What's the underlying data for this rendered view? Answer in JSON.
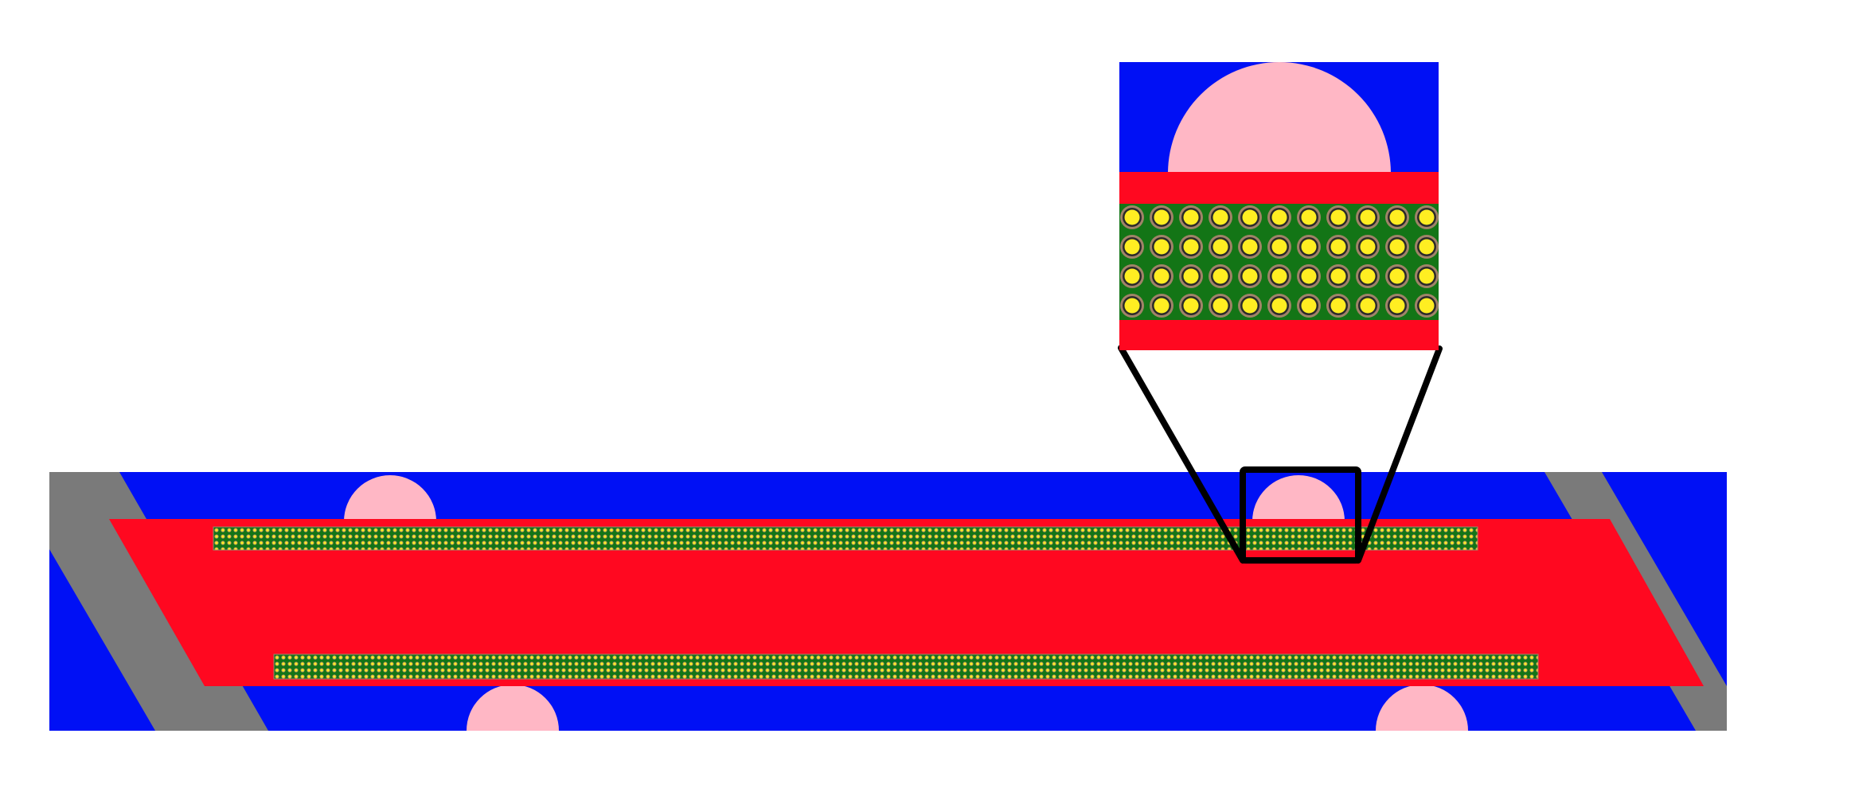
{
  "diagram": {
    "description_type": "schematic cross-section with zoom inset",
    "colors": {
      "background": "#ffffff",
      "outer_layer": "#0010f5",
      "side_wall": "#7a7a7a",
      "core": "#ff0820",
      "fiber_band": "#137516",
      "fiber": "#ffee22",
      "fiber_rim": "#a08468",
      "particle": "#ffb7c5",
      "zoom_outline": "#000000"
    },
    "inset": {
      "fiber_rows": 4,
      "fiber_columns": 11
    },
    "main_panel": {
      "top_particles": 2,
      "bottom_particles": 2,
      "fiber_bands": 2
    }
  }
}
